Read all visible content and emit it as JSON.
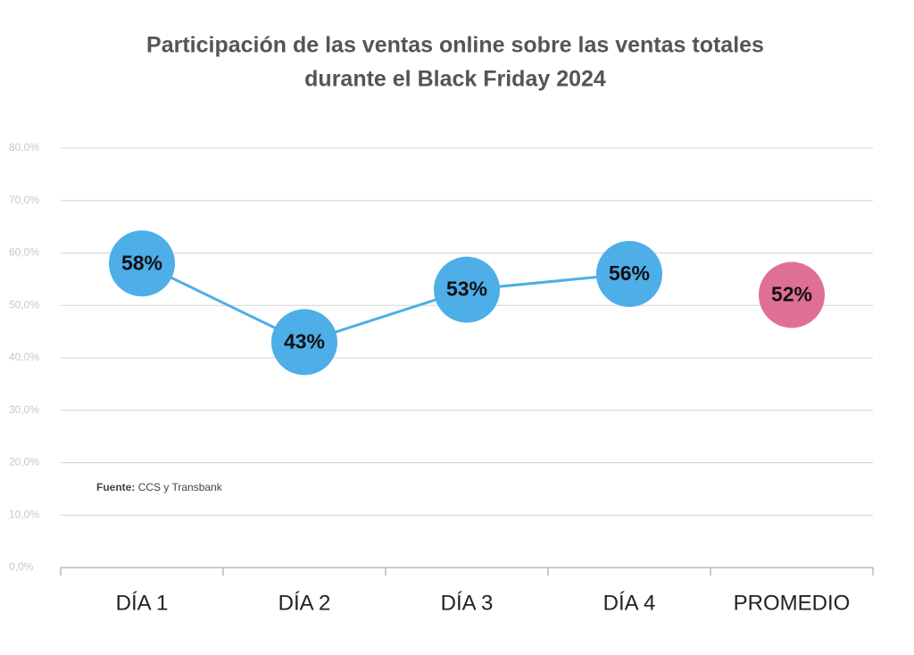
{
  "chart_data": {
    "type": "line",
    "title": [
      "Participación de las ventas online sobre las ventas totales",
      "durante el Black Friday 2024"
    ],
    "categories": [
      "DÍA 1",
      "DÍA 2",
      "DÍA 3",
      "DÍA 4",
      "PROMEDIO"
    ],
    "series": [
      {
        "color": "#4daee8",
        "line": true,
        "values": [
          58,
          43,
          53,
          56,
          null
        ],
        "value_labels": [
          "58%",
          "43%",
          "53%",
          "56%",
          null
        ]
      },
      {
        "color": "#e06f97",
        "line": false,
        "values": [
          null,
          null,
          null,
          null,
          52
        ],
        "value_labels": [
          null,
          null,
          null,
          null,
          "52%"
        ]
      }
    ],
    "ylim": [
      0,
      80
    ],
    "yticks": [
      {
        "value": 0,
        "label": "0,0%"
      },
      {
        "value": 10,
        "label": "10,0%"
      },
      {
        "value": 20,
        "label": "20,0%"
      },
      {
        "value": 30,
        "label": "30,0%"
      },
      {
        "value": 40,
        "label": "40,0%"
      },
      {
        "value": 50,
        "label": "50,0%"
      },
      {
        "value": 60,
        "label": "60,0%"
      },
      {
        "value": 70,
        "label": "70,0%"
      },
      {
        "value": 80,
        "label": "80,0%"
      }
    ],
    "grid": true,
    "source": {
      "label": "Fuente:",
      "text": "CCS y Transbank"
    }
  }
}
